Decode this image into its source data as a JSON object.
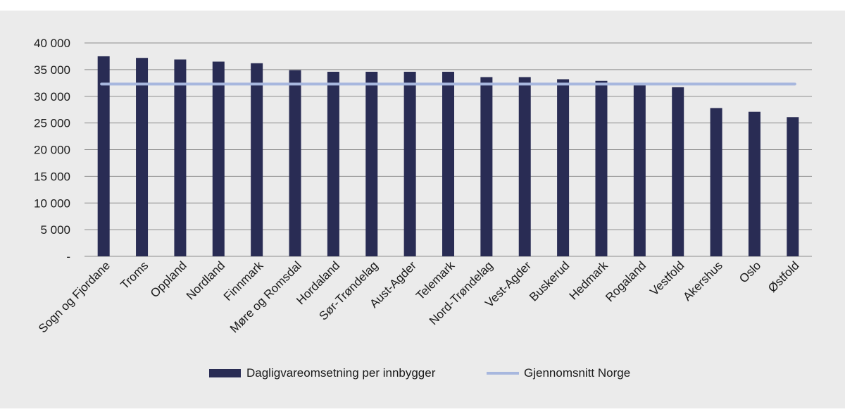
{
  "chart_data": {
    "type": "bar",
    "categories": [
      "Sogn og Fjordane",
      "Troms",
      "Oppland",
      "Nordland",
      "Finnmark",
      "Møre og Romsdal",
      "Hordaland",
      "Sør-Trøndelag",
      "Aust-Agder",
      "Telemark",
      "Nord-Trøndelag",
      "Vest-Agder",
      "Buskerud",
      "Hedmark",
      "Rogaland",
      "Vestfold",
      "Akershus",
      "Oslo",
      "Østfold"
    ],
    "series": [
      {
        "name": "Dagligvareomsetning per innbygger",
        "type": "bar",
        "color": "#292c54",
        "values": [
          37500,
          37200,
          36900,
          36500,
          36200,
          34900,
          34600,
          34600,
          34600,
          34600,
          33600,
          33600,
          33200,
          32900,
          32200,
          31700,
          27800,
          27100,
          26100
        ]
      },
      {
        "name": "Gjennomsnitt Norge",
        "type": "line",
        "color": "#a7b7de",
        "values": [
          32300,
          32300,
          32300,
          32300,
          32300,
          32300,
          32300,
          32300,
          32300,
          32300,
          32300,
          32300,
          32300,
          32300,
          32300,
          32300,
          32300,
          32300,
          32300
        ]
      }
    ],
    "ylim": [
      0,
      40000
    ],
    "ytick_labels": [
      "-",
      "5 000",
      "10 000",
      "15 000",
      "20 000",
      "25 000",
      "30 000",
      "35 000",
      "40 000"
    ],
    "grid": true,
    "legend": "bottom-center",
    "background": "#ebebeb"
  }
}
